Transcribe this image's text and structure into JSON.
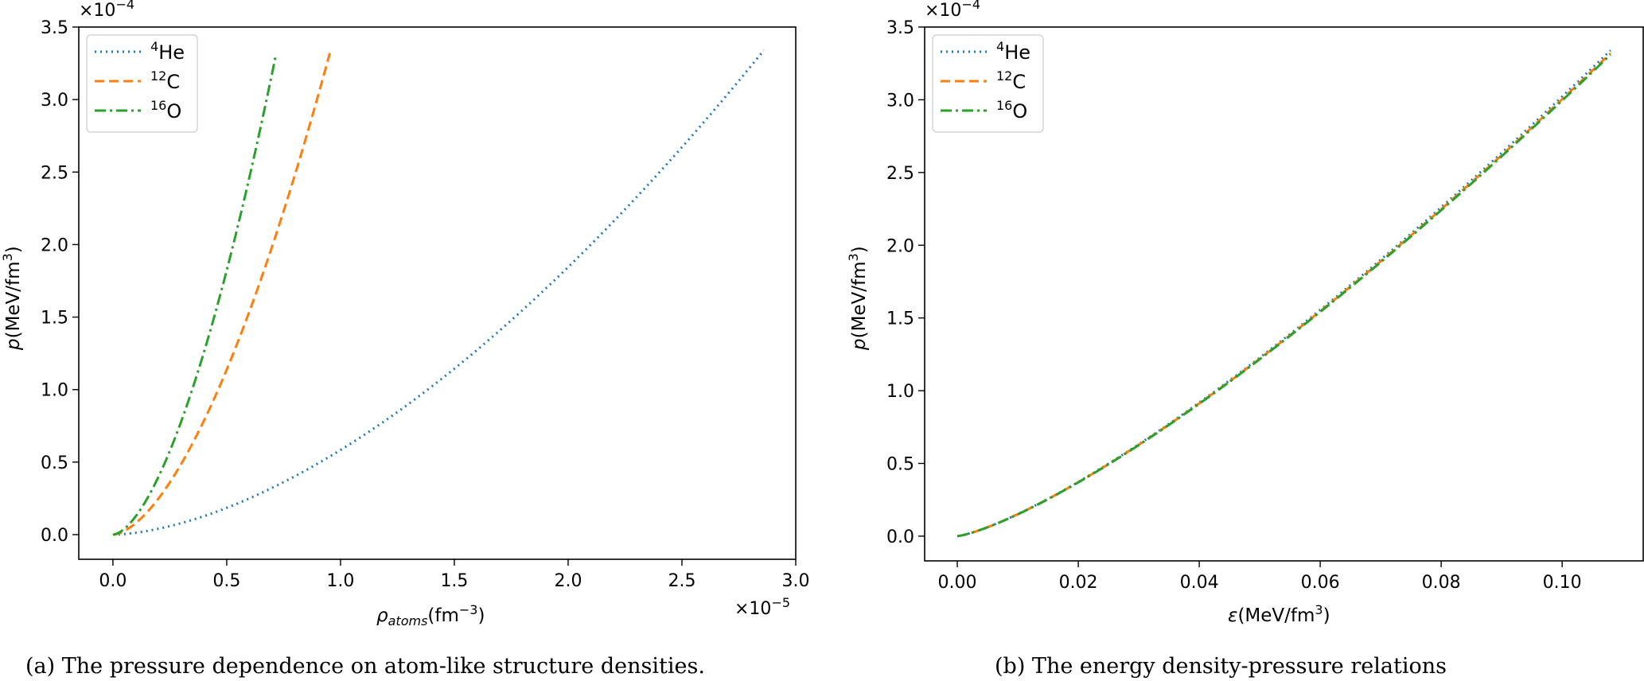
{
  "chart_data": [
    {
      "type": "line",
      "id": "a",
      "xlabel_main": "ρ",
      "xlabel_sub": "atoms",
      "xlabel_unit": "(fm",
      "xlabel_unit_exp": "−3",
      "xlabel_unit_end": ")",
      "ylabel_main": "p",
      "ylabel_unit": "(MeV/fm",
      "ylabel_unit_exp": "3",
      "ylabel_unit_end": ")",
      "x_multiplier_base": "×10",
      "x_multiplier_exp": "−5",
      "y_multiplier_base": "×10",
      "y_multiplier_exp": "−4",
      "xlim": [
        -0.15,
        3.0
      ],
      "ylim": [
        -0.17,
        3.5
      ],
      "xticks": [
        0.0,
        0.5,
        1.0,
        1.5,
        2.0,
        2.5,
        3.0
      ],
      "xtick_labels": [
        "0.0",
        "0.5",
        "1.0",
        "1.5",
        "2.0",
        "2.5",
        "3.0"
      ],
      "yticks": [
        0.0,
        0.5,
        1.0,
        1.5,
        2.0,
        2.5,
        3.0,
        3.5
      ],
      "ytick_labels": [
        "0.0",
        "0.5",
        "1.0",
        "1.5",
        "2.0",
        "2.5",
        "3.0",
        "3.5"
      ],
      "series": [
        {
          "name": "4He",
          "sup": "4",
          "base": "He",
          "color": "#1f77b4",
          "dash": "2,5",
          "xmax": 2.86,
          "ymax": 3.34,
          "exponent": 1.66
        },
        {
          "name": "12C",
          "sup": "12",
          "base": "C",
          "color": "#ff7f0e",
          "dash": "12,6",
          "xmax": 0.953,
          "ymax": 3.32,
          "exponent": 1.66
        },
        {
          "name": "16O",
          "sup": "16",
          "base": "O",
          "color": "#2ca02c",
          "dash": "14,5,3,5",
          "xmax": 0.715,
          "ymax": 3.3,
          "exponent": 1.66
        }
      ],
      "legend_loc": "upper left",
      "caption": "(a) The pressure dependence on atom-like structure densities."
    },
    {
      "type": "line",
      "id": "b",
      "xlabel_main": "ε",
      "xlabel_unit": "(MeV/fm",
      "xlabel_unit_exp": "3",
      "xlabel_unit_end": ")",
      "ylabel_main": "p",
      "ylabel_unit": "(MeV/fm",
      "ylabel_unit_exp": "3",
      "ylabel_unit_end": ")",
      "y_multiplier_base": "×10",
      "y_multiplier_exp": "−4",
      "xlim": [
        -0.0054,
        0.1134
      ],
      "ylim": [
        -0.17,
        3.5
      ],
      "xticks": [
        0.0,
        0.02,
        0.04,
        0.06,
        0.08,
        0.1
      ],
      "xtick_labels": [
        "0.00",
        "0.02",
        "0.04",
        "0.06",
        "0.08",
        "0.10"
      ],
      "yticks": [
        0.0,
        0.5,
        1.0,
        1.5,
        2.0,
        2.5,
        3.0,
        3.5
      ],
      "ytick_labels": [
        "0.0",
        "0.5",
        "1.0",
        "1.5",
        "2.0",
        "2.5",
        "3.0",
        "3.5"
      ],
      "series": [
        {
          "name": "4He",
          "sup": "4",
          "base": "He",
          "color": "#1f77b4",
          "dash": "2,5",
          "xmax": 0.108,
          "ymax": 3.34,
          "exponent": 1.3
        },
        {
          "name": "12C",
          "sup": "12",
          "base": "C",
          "color": "#ff7f0e",
          "dash": "12,6",
          "xmax": 0.108,
          "ymax": 3.32,
          "exponent": 1.3
        },
        {
          "name": "16O",
          "sup": "16",
          "base": "O",
          "color": "#2ca02c",
          "dash": "14,5,3,5",
          "xmax": 0.108,
          "ymax": 3.31,
          "exponent": 1.3
        }
      ],
      "legend_loc": "upper left",
      "caption": "(b) The energy density-pressure relations"
    }
  ]
}
